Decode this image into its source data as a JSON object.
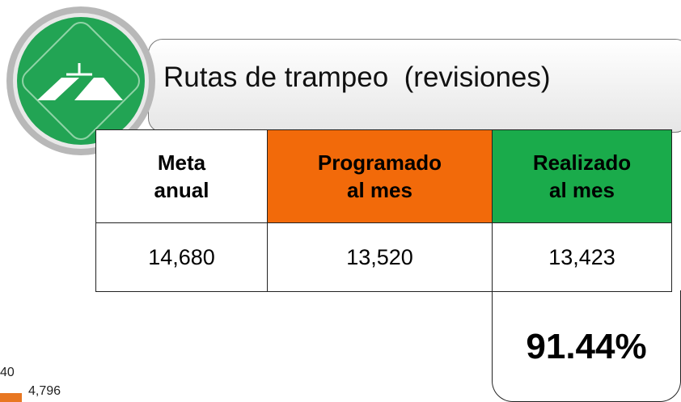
{
  "header": {
    "title": "Rutas de trampeo  (revisiones)"
  },
  "table": {
    "headers": [
      "Meta anual",
      "Programado al mes",
      "Realizado al mes"
    ],
    "rows": [
      [
        "14,680",
        "13,520",
        "13,423"
      ]
    ]
  },
  "percentage": "91.44%",
  "fragment": {
    "labels": [
      "40",
      "4,796"
    ]
  }
}
